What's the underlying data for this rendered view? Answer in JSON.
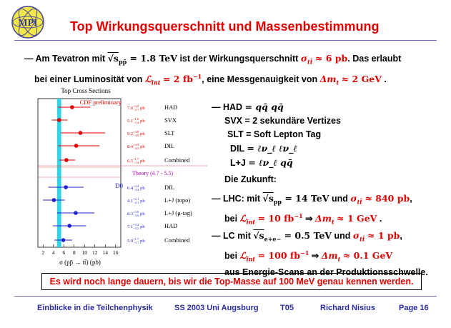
{
  "logo": {
    "text": "MPI"
  },
  "title": "Top Wirkungsquerschnitt und Massenbestimmung",
  "intro": {
    "dash": "—",
    "l1_a": "Am Tevatron mit",
    "l1_sqrt": "√s",
    "l1_sub": "pp̄",
    "l1_eq": "= 1.8 TeV",
    "l1_b": "ist der Wirkungsquerschnitt",
    "l1_sigma": "σ",
    "l1_sigsub": "tt̄",
    "l1_val": "≈ 6 pb",
    "l1_c": ". Das erlaubt",
    "l2_a": "bei einer Luminosität von",
    "l2_L": "ℒ",
    "l2_Lsub": "int",
    "l2_val": "= 2 fb",
    "l2_exp": "−1",
    "l2_b": ", eine Messgenauigkeit von",
    "l2_dm": "Δm",
    "l2_dmsub": "t",
    "l2_dmval": "≈ 2 GeV",
    "l2_end": "."
  },
  "chart": {
    "title": "Top Cross Sections",
    "cdf_label": "CDF preliminary",
    "theory_label": "Theory  (4.7 - 5.5)",
    "d0_label": "D0",
    "xlabel": "σ (pp̄ → tt̄) (pb)",
    "x_ticks": [
      "2",
      "4",
      "6",
      "8",
      "10",
      "12",
      "14",
      "16"
    ]
  },
  "chart_data": {
    "type": "scatter",
    "title": "Top Cross Sections",
    "xlabel": "σ (pp̄ → tt̄) (pb)",
    "xlim": [
      1,
      17
    ],
    "theory_band": [
      4.7,
      5.5
    ],
    "series": [
      {
        "name": "CDF preliminary",
        "color": "#e00000",
        "points": [
          {
            "label": "HAD",
            "value": "7.6",
            "up": "+3.5",
            "dn": "−2.7",
            "x": 7.6,
            "lo": 4.9,
            "hi": 11.1
          },
          {
            "label": "SVX",
            "value": "5.1",
            "up": "+1.6",
            "dn": "−1.4",
            "x": 5.1,
            "lo": 3.7,
            "hi": 6.7
          },
          {
            "label": "SLT",
            "value": "9.2",
            "up": "+4.8",
            "dn": "−3.8",
            "x": 9.2,
            "lo": 5.4,
            "hi": 14.0
          },
          {
            "label": "DIL",
            "value": "8.4",
            "up": "+4.5",
            "dn": "−3.5",
            "x": 8.4,
            "lo": 4.9,
            "hi": 12.9
          },
          {
            "label": "Combined",
            "value": "6.5",
            "up": "+1.7",
            "dn": "−1.4",
            "x": 6.5,
            "lo": 5.1,
            "hi": 8.2
          }
        ]
      },
      {
        "name": "D0",
        "color": "#1f1fd0",
        "points": [
          {
            "label": "DIL",
            "value": "6.4",
            "up": "+3.4",
            "dn": "−3.4",
            "x": 6.4,
            "lo": 3.0,
            "hi": 9.8
          },
          {
            "label": "L+J (topo)",
            "value": "4.1",
            "up": "+2.1",
            "dn": "−2.1",
            "x": 4.1,
            "lo": 2.0,
            "hi": 6.2
          },
          {
            "label": "L+J (μ-tag)",
            "value": "8.3",
            "up": "+3.6",
            "dn": "−3.6",
            "x": 8.3,
            "lo": 4.7,
            "hi": 11.9
          },
          {
            "label": "HAD",
            "value": "7.1",
            "up": "+3.2",
            "dn": "−3.2",
            "x": 7.1,
            "lo": 3.9,
            "hi": 10.3
          },
          {
            "label": "Combined",
            "value": "5.9",
            "up": "+1.7",
            "dn": "−1.7",
            "x": 5.9,
            "lo": 4.2,
            "hi": 7.6
          }
        ]
      }
    ]
  },
  "right": {
    "had_lbl": "— HAD",
    "had_eq": "= qq̄ qq̄",
    "svx": "SVX = 2 sekundäre Vertizes",
    "slt": "SLT = Soft  Lepton  Tag",
    "dil_lbl": "DIL",
    "dil_eq": "= ℓν_ℓ ℓν_ℓ",
    "lj_lbl": "L+J",
    "lj_eq": "= ℓν_ℓ qq̄",
    "future": "Die Zukunft:",
    "lhc_a": "— LHC: mit",
    "lhc_sqrt": "√s",
    "lhc_sub": "pp",
    "lhc_eq": "= 14 TeV",
    "lhc_und": "und",
    "lhc_sig": "σ",
    "lhc_sigsub": "tt̄",
    "lhc_sigval": "≈ 840 pb",
    "lhc_comma": ",",
    "lhc2_a": "bei",
    "lhc2_L": "ℒ",
    "lhc2_Lsub": "int",
    "lhc2_val": "= 10 fb",
    "lhc2_exp": "−1",
    "lhc2_arrow": "⇒",
    "lhc2_dm": "Δm",
    "lhc2_dmsub": "t",
    "lhc2_dmval": "≈ 1 GeV",
    "lhc2_end": ".",
    "lc_a": "— LC mit",
    "lc_sqrt": "√s",
    "lc_sub": "e+e−",
    "lc_eq": "= 0.5 TeV",
    "lc_und": "und",
    "lc_sig": "σ",
    "lc_sigsub": "tt̄",
    "lc_sigval": "≈ 1 pb",
    "lc_comma": ",",
    "lc2_a": "bei",
    "lc2_L": "ℒ",
    "lc2_Lsub": "int",
    "lc2_val": "= 100 fb",
    "lc2_exp": "−1",
    "lc2_arrow": "⇒",
    "lc2_dm": "Δm",
    "lc2_dmsub": "t",
    "lc2_dmval": "≈ 0.1 GeV",
    "lc3": "aus Energie-Scans an der Produktionsschwelle."
  },
  "conclusion": "Es wird noch lange dauern, bis wir die Top-Masse auf 100 MeV genau kennen werden.",
  "footer": {
    "course": "Einblicke in die Teilchenphysik",
    "term": "SS 2003 Uni Augsburg",
    "code": "T05",
    "author": "Richard Nisius",
    "page": "Page 16"
  }
}
